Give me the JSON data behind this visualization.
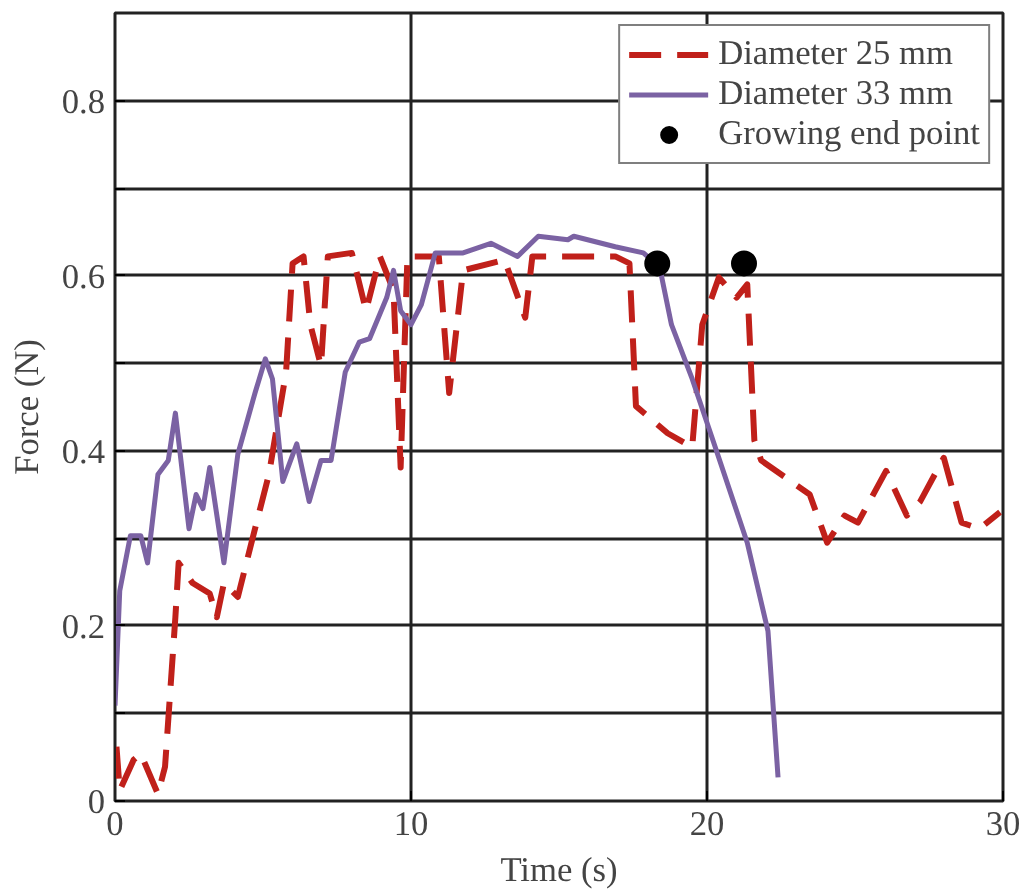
{
  "chart_data": {
    "type": "line",
    "xlabel": "Time (s)",
    "ylabel": "Force (N)",
    "xlim": [
      0,
      30
    ],
    "ylim": [
      0,
      0.9
    ],
    "xticks": [
      0,
      10,
      20,
      30
    ],
    "yticks": [
      0,
      {
        "value": 0.1,
        "label": null
      },
      0.2,
      {
        "value": 0.3,
        "label": null
      },
      0.4,
      {
        "value": 0.5,
        "label": null
      },
      0.6,
      {
        "value": 0.7,
        "label": null
      },
      0.8
    ],
    "grid": true,
    "legend": "top right",
    "series": [
      {
        "name": "Diameter 25 mm",
        "color": "#c0201a",
        "line_style": "dashed",
        "x": [
          0.05,
          0.16,
          0.63,
          0.87,
          1.45,
          1.69,
          2.04,
          2.15,
          2.62,
          3.2,
          3.44,
          3.68,
          4.15,
          4.61,
          5.2,
          5.78,
          6.0,
          6.37,
          6.6,
          6.96,
          7.19,
          8.0,
          8.48,
          8.95,
          9.41,
          9.65,
          9.88,
          10.94,
          11.29,
          11.76,
          13.16,
          13.86,
          14.1,
          15.3,
          16.9,
          17.38,
          17.6,
          18.67,
          19.5,
          19.84,
          20.4,
          21.0,
          21.36,
          21.6,
          21.83,
          23.47,
          24.06,
          24.65,
          25.1,
          26.05,
          26.75,
          27.2,
          28.0,
          28.6,
          29.2,
          29.9
        ],
        "values": [
          0.062,
          0.012,
          0.047,
          0.054,
          0.008,
          0.039,
          0.21,
          0.272,
          0.249,
          0.237,
          0.21,
          0.249,
          0.233,
          0.295,
          0.373,
          0.49,
          0.614,
          0.622,
          0.544,
          0.497,
          0.622,
          0.626,
          0.56,
          0.622,
          0.583,
          0.381,
          0.622,
          0.622,
          0.466,
          0.606,
          0.618,
          0.552,
          0.622,
          0.622,
          0.622,
          0.614,
          0.451,
          0.42,
          0.404,
          0.544,
          0.598,
          0.575,
          0.59,
          0.412,
          0.389,
          0.35,
          0.295,
          0.326,
          0.318,
          0.377,
          0.326,
          0.342,
          0.392,
          0.318,
          0.311,
          0.33
        ]
      },
      {
        "name": "Diameter 33 mm",
        "color": "#7b62a3",
        "line_style": "solid",
        "x": [
          0,
          0.16,
          0.52,
          0.87,
          1.1,
          1.45,
          1.8,
          2.04,
          2.5,
          2.74,
          2.97,
          3.2,
          3.68,
          4.15,
          4.73,
          5.08,
          5.32,
          5.67,
          6.14,
          6.56,
          6.96,
          7.3,
          7.78,
          8.25,
          8.6,
          9.18,
          9.41,
          9.65,
          10.0,
          10.35,
          10.82,
          11.76,
          12.7,
          13.6,
          14.3,
          15.3,
          15.5,
          16.9,
          17.85,
          18.4,
          18.8,
          19.5,
          20.2,
          21.36,
          22.06,
          22.4
        ],
        "values": [
          0.109,
          0.24,
          0.303,
          0.303,
          0.272,
          0.373,
          0.389,
          0.443,
          0.311,
          0.35,
          0.334,
          0.381,
          0.272,
          0.396,
          0.466,
          0.505,
          0.482,
          0.365,
          0.408,
          0.342,
          0.389,
          0.389,
          0.49,
          0.524,
          0.528,
          0.575,
          0.606,
          0.56,
          0.544,
          0.567,
          0.626,
          0.626,
          0.637,
          0.622,
          0.645,
          0.641,
          0.645,
          0.633,
          0.626,
          0.61,
          0.544,
          0.482,
          0.412,
          0.295,
          0.194,
          0.027
        ]
      },
      {
        "name": "Growing end point",
        "type": "scatter",
        "marker": "circle",
        "color": "#000000",
        "x": [
          18.32,
          21.25
        ],
        "values": [
          0.614,
          0.614
        ]
      }
    ]
  }
}
